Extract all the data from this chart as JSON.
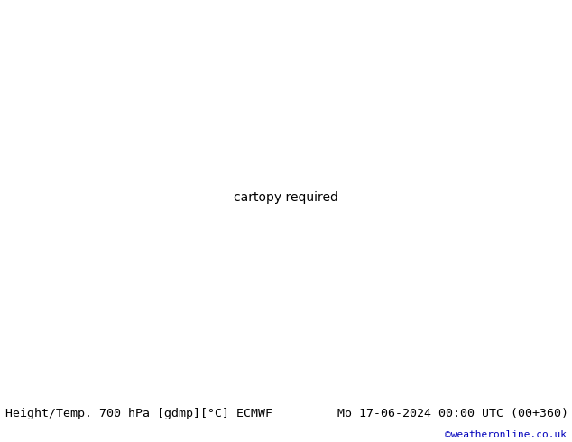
{
  "title_left": "Height/Temp. 700 hPa [gdmp][°C] ECMWF",
  "title_right": "Mo 17-06-2024 00:00 UTC (00+360)",
  "credit": "©weatheronline.co.uk",
  "footer_bg": "#e0e0e0",
  "footer_text_color": "#000000",
  "credit_color": "#0000bb",
  "fig_width": 6.34,
  "fig_height": 4.9,
  "dpi": 100,
  "land_color": "#c8e8a0",
  "sea_color": "#e8e8e8",
  "mountain_color": "#b8c8a8",
  "border_color": "#888888",
  "black_line_color": "#000000",
  "red_line_color": "#dd0000",
  "magenta_line_color": "#ee00aa",
  "orange_line_color": "#ff8800",
  "map_extent": [
    -55,
    50,
    25,
    75
  ]
}
